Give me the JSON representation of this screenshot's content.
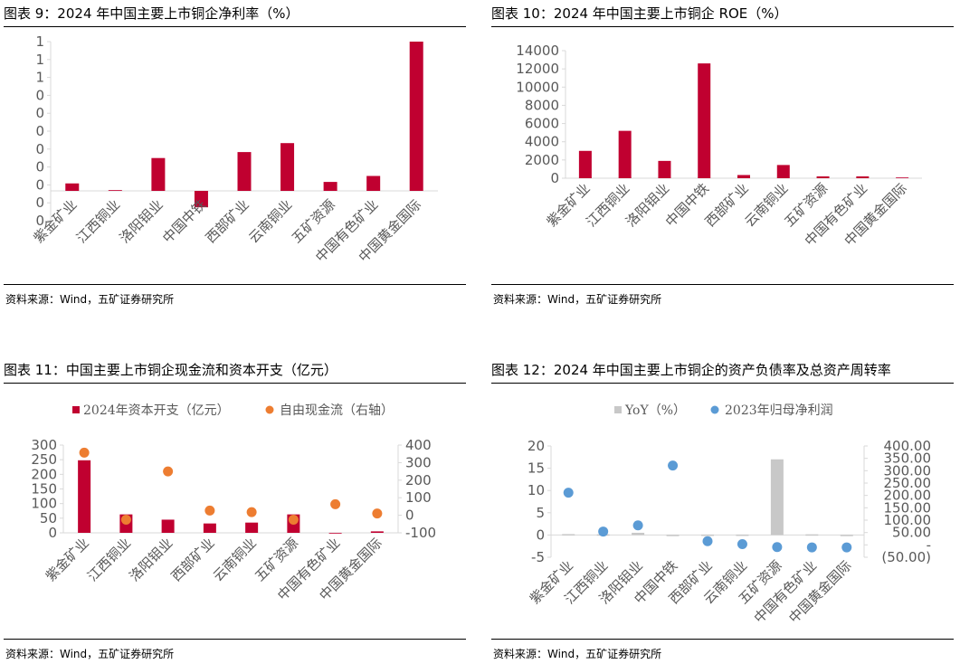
{
  "colors": {
    "bar": "#c00030",
    "dot_orange": "#ed7d31",
    "dot_blue": "#5b9bd5",
    "bar_gray": "#c8c8c8",
    "axis": "#d9d9d9"
  },
  "categories": [
    "紫金矿业",
    "江西铜业",
    "洛阳钼业",
    "中国中铁",
    "西部矿业",
    "云南铜业",
    "五矿资源",
    "中国有色矿业",
    "中国黄金国际"
  ],
  "panels": [
    {
      "title": "图表 9：2024 年中国主要上市铜企净利率（%）",
      "source": "资料来源：Wind，五矿证券研究所"
    },
    {
      "title": "图表 10：2024 年中国主要上市铜企 ROE（%）",
      "source": "资料来源：Wind，五矿证券研究所"
    },
    {
      "title": "图表 11：中国主要上市铜企现金流和资本开支（亿元）",
      "source": "资料来源：Wind，五矿证券研究所"
    },
    {
      "title": "图表 12：2024 年中国主要上市铜企的资产负债率及总资产周转率",
      "source": "资料来源：Wind，五矿证券研究所"
    }
  ],
  "chart_data": [
    {
      "type": "bar",
      "categories": [
        "紫金矿业",
        "江西铜业",
        "洛阳钼业",
        "中国中铁",
        "西部矿业",
        "云南铜业",
        "五矿资源",
        "中国有色矿业",
        "中国黄金国际"
      ],
      "values": [
        0.05,
        0.005,
        0.22,
        -0.11,
        0.26,
        0.32,
        0.06,
        0.1,
        1.0
      ],
      "ylim": [
        -0.2,
        1.0
      ],
      "ytick_labels": [
        "0",
        "0",
        "0",
        "0",
        "0",
        "0",
        "0",
        "0",
        "1",
        "1",
        "1"
      ],
      "title": "",
      "xlabel": "",
      "ylabel": "",
      "grid": false
    },
    {
      "type": "bar",
      "categories": [
        "紫金矿业",
        "江西铜业",
        "洛阳钼业",
        "中国中铁",
        "西部矿业",
        "云南铜业",
        "五矿资源",
        "中国有色矿业",
        "中国黄金国际"
      ],
      "values": [
        3000,
        5200,
        1900,
        12600,
        350,
        1450,
        200,
        200,
        80
      ],
      "ylim": [
        0,
        14000
      ],
      "ytick_labels": [
        "0",
        "2000",
        "4000",
        "6000",
        "8000",
        "10000",
        "12000",
        "14000"
      ],
      "title": "",
      "xlabel": "",
      "ylabel": "",
      "grid": false
    },
    {
      "type": "bar",
      "categories": [
        "紫金矿业",
        "江西铜业",
        "洛阳钼业",
        "西部矿业",
        "云南铜业",
        "五矿资源",
        "中国有色矿业",
        "中国黄金国际"
      ],
      "series": [
        {
          "name": "2024年资本开支（亿元）",
          "type": "bar",
          "axis": "left",
          "values": [
            248,
            63,
            45,
            32,
            35,
            63,
            0,
            5
          ]
        },
        {
          "name": "自由现金流（右轴）",
          "type": "scatter",
          "axis": "right",
          "values": [
            357,
            -25,
            250,
            27,
            18,
            -25,
            63,
            10
          ]
        }
      ],
      "ylim": [
        0,
        300
      ],
      "ytick_labels": [
        "0",
        "50",
        "100",
        "150",
        "200",
        "250",
        "300"
      ],
      "y2lim": [
        -100,
        400
      ],
      "y2tick_labels": [
        "-100",
        "0",
        "100",
        "200",
        "300",
        "400"
      ],
      "legend": "top",
      "title": "",
      "xlabel": "",
      "ylabel": "",
      "grid": false
    },
    {
      "type": "bar",
      "categories": [
        "紫金矿业",
        "江西铜业",
        "洛阳钼业",
        "中国中铁",
        "西部矿业",
        "云南铜业",
        "五矿资源",
        "中国有色矿业",
        "中国黄金国际"
      ],
      "series": [
        {
          "name": "YoY（%）",
          "type": "bar",
          "axis": "left",
          "values": [
            0.2,
            0.15,
            0.5,
            0.05,
            0.1,
            0.1,
            17,
            0.15,
            0.05
          ]
        },
        {
          "name": "2023年归母净利润",
          "type": "scatter",
          "axis": "right",
          "values": [
            211,
            54,
            79,
            321,
            15,
            3,
            -9,
            -10,
            -10
          ]
        }
      ],
      "ylim": [
        -5,
        20
      ],
      "ytick_labels": [
        "-5",
        "0",
        "5",
        "10",
        "15",
        "20"
      ],
      "y2lim": [
        -50,
        400
      ],
      "y2tick_labels": [
        "(50.00)",
        "-",
        "50.00",
        "100.00",
        "150.00",
        "200.00",
        "250.00",
        "300.00",
        "350.00",
        "400.00"
      ],
      "legend": "top",
      "title": "",
      "xlabel": "",
      "ylabel": "",
      "grid": false
    }
  ]
}
